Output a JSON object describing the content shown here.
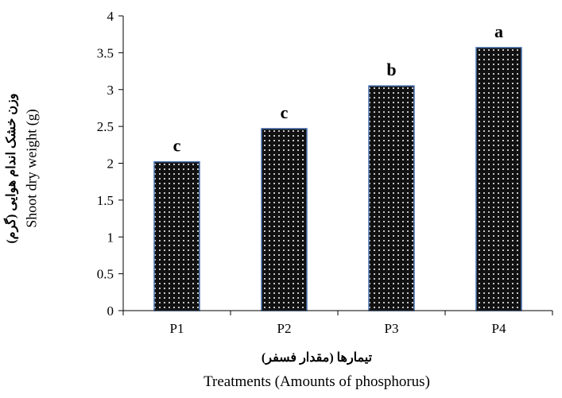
{
  "chart_data": {
    "type": "bar",
    "categories": [
      "P1",
      "P2",
      "P3",
      "P4"
    ],
    "values": [
      2.02,
      2.47,
      3.05,
      3.57
    ],
    "significance_letters": [
      "c",
      "c",
      "b",
      "a"
    ],
    "ylim": [
      0,
      4
    ],
    "yticks": [
      "0",
      "0.5",
      "1",
      "1.5",
      "2",
      "2.5",
      "3",
      "3.5",
      "4"
    ],
    "ylabel_fa": "وزن خشک اندام هوایی (گرم)",
    "ylabel": "Shoot dry weight  (g)",
    "xlabel_fa": "تیمارها (مقدار فسفر)",
    "xlabel": "Treatments (Amounts of phosphorus)",
    "grid": false,
    "colors": {
      "bar_fill": "#111111",
      "bar_dots": "#ffffff",
      "bar_edge": "#4a72b0",
      "axis": "#000000"
    }
  }
}
